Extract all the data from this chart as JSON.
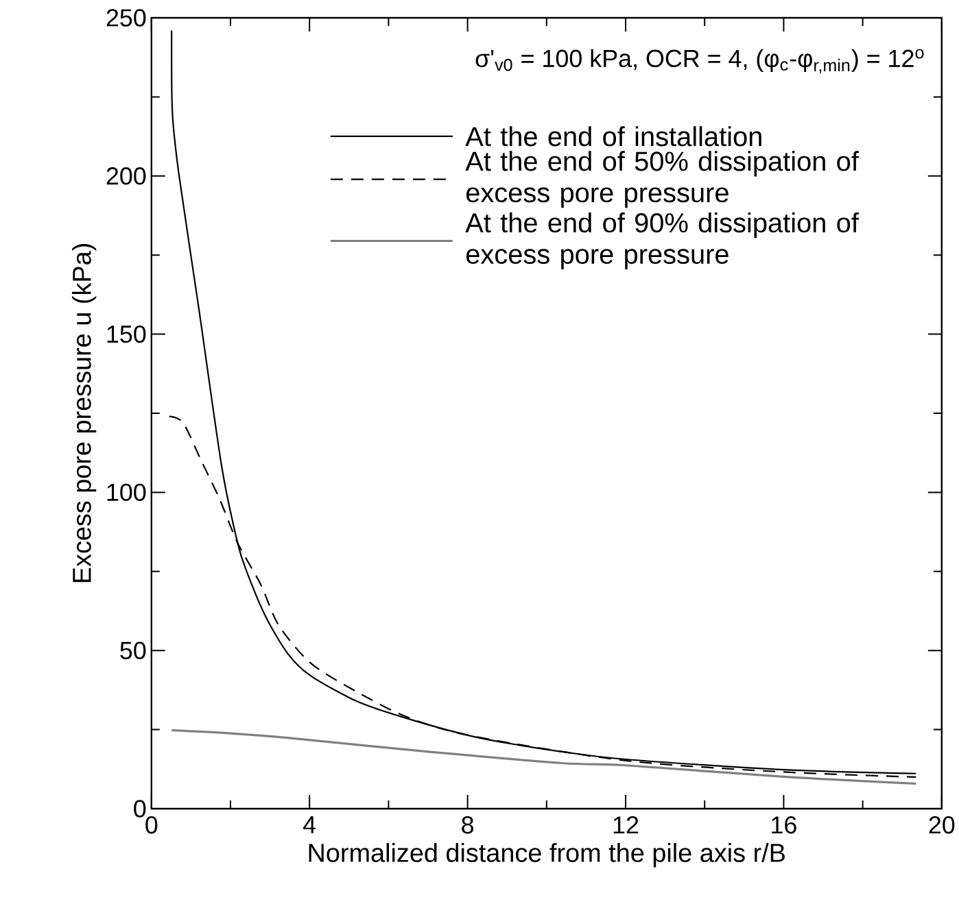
{
  "chart_data": {
    "type": "line",
    "xlabel": "Normalized distance from the pile axis r/B",
    "ylabel": "Excess pore pressure u (kPa)",
    "annotations": [
      "σ'$_{v0}$ = 100 kPa, OCR = 4, (φ$_{c}$-φ$_{r,min}$) = 12$^{o}$"
    ],
    "xlim": [
      0,
      20
    ],
    "xticks": [
      0,
      4,
      8,
      12,
      16,
      20
    ],
    "ylim": [
      0,
      250
    ],
    "yticks": [
      0,
      50,
      100,
      150,
      200,
      250
    ],
    "legend": "top right",
    "series": [
      {
        "name": "At the end of installation",
        "color": "#000000",
        "line_style": "solid",
        "x": [
          0.51,
          0.53,
          0.7,
          1.2,
          1.78,
          2.18,
          2.41,
          2.88,
          3.45,
          4.03,
          5.19,
          6.34,
          8.08,
          9.35,
          10.39,
          12.0,
          16.0,
          19.35
        ],
        "values": [
          246,
          220,
          200,
          158,
          108,
          84,
          75,
          61,
          49,
          42,
          34,
          29,
          23,
          20,
          18,
          15.6,
          12.3,
          11.1
        ]
      },
      {
        "name": "At the end of 50% dissipation of excess pore pressure",
        "color": "#000000",
        "line_style": "dashed",
        "x": [
          0.45,
          0.8,
          1.26,
          1.72,
          2.18,
          2.76,
          3.22,
          4.03,
          5.19,
          6.46,
          8.1,
          12.0,
          16.0,
          19.35
        ],
        "values": [
          124,
          122,
          110,
          98,
          84,
          71,
          58,
          46,
          37,
          29,
          23,
          15.2,
          11.6,
          10.0
        ]
      },
      {
        "name": "At the end of 90% dissipation of excess pore pressure",
        "color": "#808080",
        "line_style": "solid",
        "x": [
          0.51,
          2.0,
          3.45,
          6.92,
          10.39,
          12.0,
          16.0,
          19.35
        ],
        "values": [
          24.8,
          23.8,
          22.4,
          18.1,
          14.4,
          13.7,
          10.1,
          7.9
        ]
      }
    ]
  }
}
